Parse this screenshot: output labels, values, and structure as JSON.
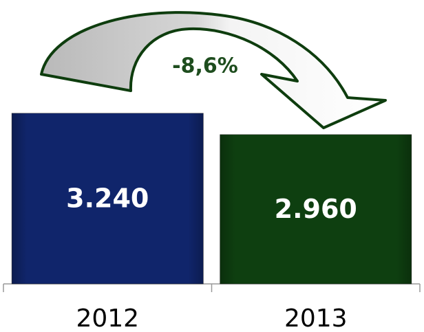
{
  "chart_data": {
    "type": "bar",
    "categories": [
      "2012",
      "2013"
    ],
    "values": [
      3240,
      2960
    ],
    "value_labels": [
      "3.240",
      "2.960"
    ],
    "colors": [
      "#10256b",
      "#0e3f10"
    ],
    "ylim": [
      1000,
      3400
    ],
    "annotation": "-8,6%"
  }
}
